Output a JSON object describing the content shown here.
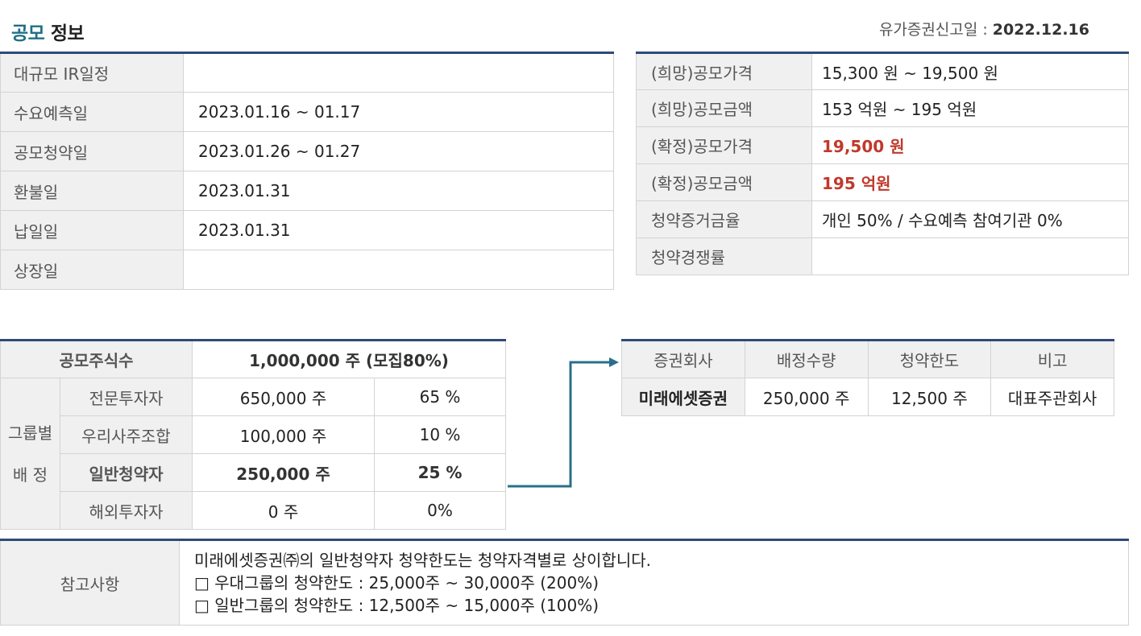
{
  "header": {
    "title_accent": "공모",
    "title_rest": "정보",
    "report_date_label": "유가증권신고일 : ",
    "report_date": "2022.12.16"
  },
  "schedule": [
    {
      "label": "대규모 IR일정",
      "value": ""
    },
    {
      "label": "수요예측일",
      "value": "2023.01.16 ~ 01.17"
    },
    {
      "label": "공모청약일",
      "value": "2023.01.26 ~ 01.27"
    },
    {
      "label": "환불일",
      "value": "2023.01.31"
    },
    {
      "label": "납일일",
      "value": "2023.01.31"
    },
    {
      "label": "상장일",
      "value": ""
    }
  ],
  "price": [
    {
      "label": "(희망)공모가격",
      "value": "15,300 원 ~ 19,500 원"
    },
    {
      "label": "(희망)공모금액",
      "value": "153 억원  ~ 195 억원"
    },
    {
      "label": "(확정)공모가격",
      "value": "19,500 원"
    },
    {
      "label": "(확정)공모금액",
      "value": "195 억원"
    },
    {
      "label": "청약증거금율",
      "value": "개인 50% / 수요예측 참여기관 0%"
    },
    {
      "label": "청약경쟁률",
      "value": ""
    }
  ],
  "allocation": {
    "total_label": "공모주식수",
    "total_value": "1,000,000 주 (모집80%)",
    "group_label_line1": "그룹별",
    "group_label_line2": "배 정",
    "rows": [
      {
        "label": "전문투자자",
        "shares": "650,000 주",
        "pct": "65 %"
      },
      {
        "label": "우리사주조합",
        "shares": "100,000 주",
        "pct": "10 %"
      },
      {
        "label": "일반청약자",
        "shares": "250,000 주",
        "pct": "25 %"
      },
      {
        "label": "해외투자자",
        "shares": "0 주",
        "pct": "0%"
      }
    ]
  },
  "broker": {
    "headers": [
      "증권회사",
      "배정수량",
      "청약한도",
      "비고"
    ],
    "row": [
      "미래에셋증권",
      "250,000 주",
      "12,500 주",
      "대표주관회사"
    ]
  },
  "note": {
    "label": "참고사항",
    "lines": [
      "미래에셋증권㈜의 일반청약자 청약한도는 청약자격별로 상이합니다.",
      "□ 우대그룹의 청약한도 : 25,000주 ~ 30,000주 (200%)",
      "□ 일반그룹의 청약한도 : 12,500주 ~ 15,000주 (100%)"
    ]
  },
  "colors": {
    "accent": "#2e4a78",
    "title_accent": "#1f6f86",
    "highlight_red": "#c0392b",
    "arrow": "#2a6f8a"
  },
  "icons": {
    "arrow": "right-arrow-connector-icon"
  }
}
